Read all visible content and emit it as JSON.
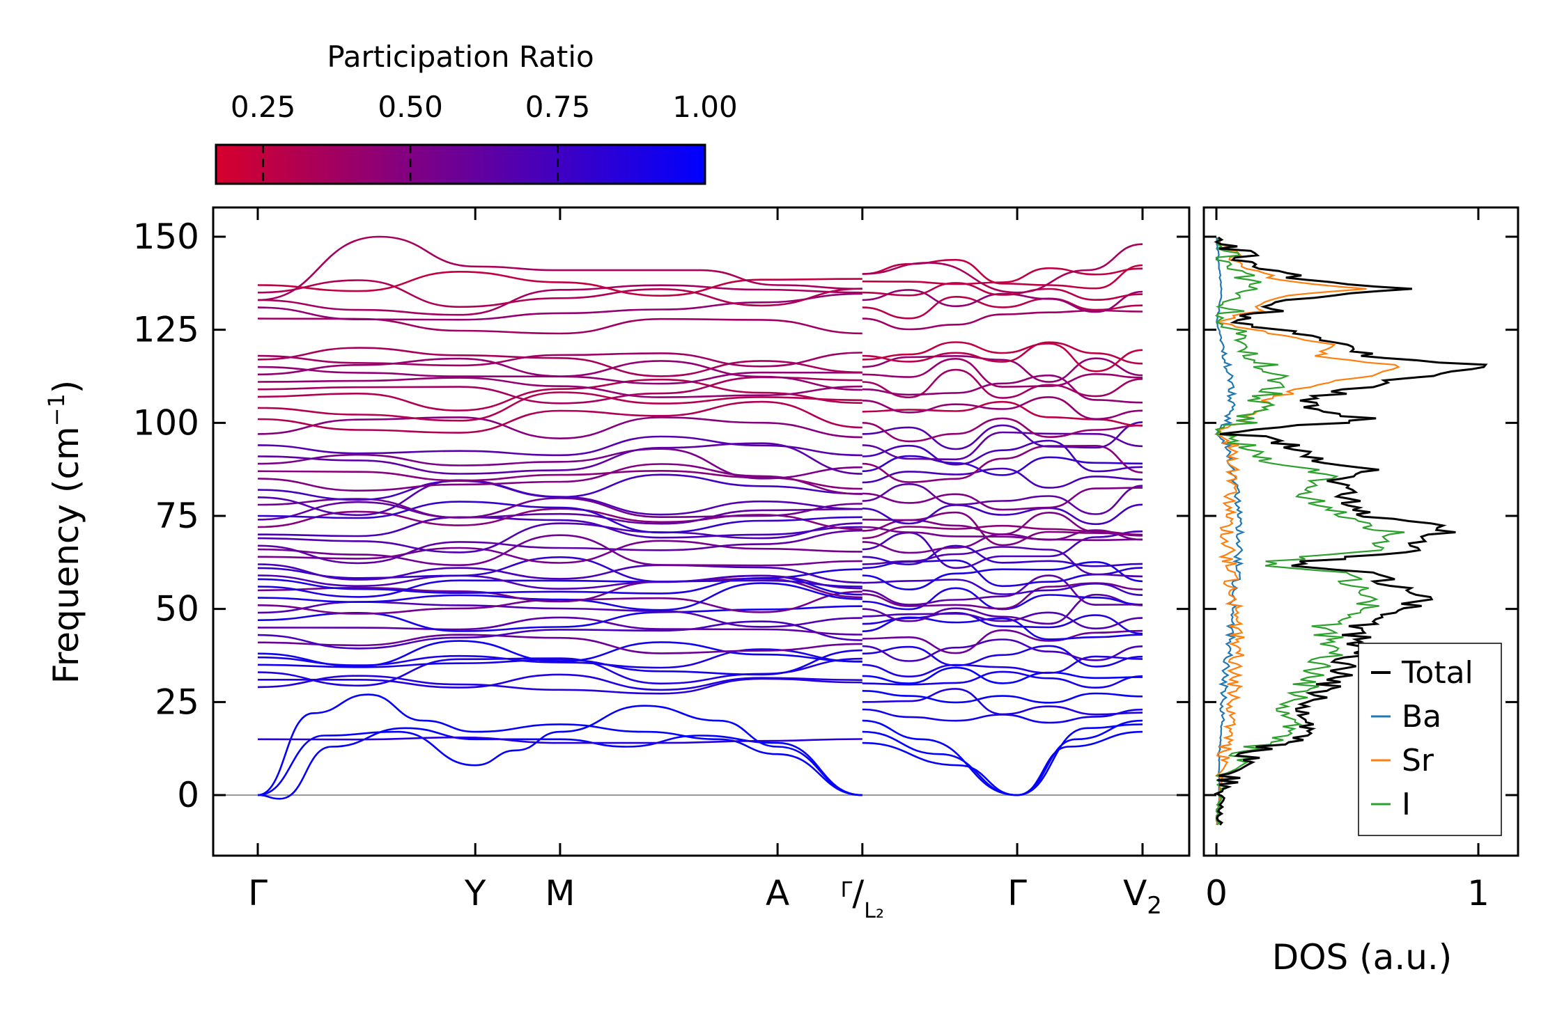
{
  "colorbar": {
    "title": "Participation Ratio",
    "ticks": [
      0.25,
      0.5,
      0.75,
      1.0
    ],
    "tick_labels": [
      "0.25",
      "0.50",
      "0.75",
      "1.00"
    ],
    "range": [
      0.17,
      1.0
    ],
    "color_low": "#d6002c",
    "color_mid": "#8b0078",
    "color_high": "#0000ff"
  },
  "chart_data": [
    {
      "type": "line",
      "name": "phonon-band-structure",
      "ylabel": "Frequency (cm",
      "ylabel_sup": "−1",
      "ylabel_close": ")",
      "ylim": [
        -16,
        150
      ],
      "xlim": [
        -0.12,
        2.25
      ],
      "yticks": [
        0,
        25,
        50,
        75,
        100,
        125,
        150
      ],
      "ytick_labels": [
        "0",
        "25",
        "50",
        "75",
        "100",
        "125",
        "150"
      ],
      "kpoints": [
        {
          "pos": 0.0,
          "label": "Γ"
        },
        {
          "pos": 0.59,
          "label": "Y"
        },
        {
          "pos": 0.82,
          "label": "M"
        },
        {
          "pos": 1.41,
          "label": "A"
        },
        {
          "pos": 1.64,
          "label": "Γ",
          "sub": "L₂",
          "sep": "/"
        },
        {
          "pos": 2.06,
          "label": "Γ"
        },
        {
          "pos": 2.4,
          "label": "V",
          "sub": "2"
        }
      ],
      "segment_ranges": [
        [
          0.0,
          1.64
        ],
        [
          1.64,
          2.4
        ]
      ],
      "zero_line": true,
      "acoustic_left": [
        [
          [
            0,
            0
          ],
          [
            0.15,
            22
          ],
          [
            0.3,
            27
          ],
          [
            0.45,
            20
          ],
          [
            0.59,
            17
          ],
          [
            0.82,
            19
          ],
          [
            1.05,
            17
          ],
          [
            1.25,
            15
          ],
          [
            1.41,
            11
          ],
          [
            1.64,
            0
          ]
        ],
        [
          [
            0,
            0
          ],
          [
            0.18,
            16
          ],
          [
            0.38,
            17
          ],
          [
            0.59,
            8
          ],
          [
            0.7,
            12
          ],
          [
            0.82,
            17
          ],
          [
            1.05,
            24
          ],
          [
            1.25,
            20
          ],
          [
            1.41,
            13
          ],
          [
            1.64,
            0
          ]
        ],
        [
          [
            0,
            0
          ],
          [
            0.06,
            -1
          ],
          [
            0.2,
            13
          ],
          [
            0.4,
            18
          ],
          [
            0.59,
            15
          ],
          [
            0.82,
            15
          ],
          [
            1.0,
            13
          ],
          [
            1.2,
            16
          ],
          [
            1.41,
            14
          ],
          [
            1.64,
            0
          ]
        ]
      ],
      "acoustic_right": [
        [
          [
            1.64,
            20
          ],
          [
            1.8,
            15
          ],
          [
            2.06,
            0
          ],
          [
            2.25,
            18
          ],
          [
            2.4,
            19
          ]
        ],
        [
          [
            1.64,
            17
          ],
          [
            1.85,
            11
          ],
          [
            2.06,
            0
          ],
          [
            2.2,
            13
          ],
          [
            2.4,
            17
          ]
        ],
        [
          [
            1.64,
            14
          ],
          [
            1.9,
            8
          ],
          [
            2.06,
            0
          ],
          [
            2.22,
            15
          ],
          [
            2.4,
            20
          ]
        ]
      ],
      "optic_left_start": [
        15,
        29,
        31,
        33,
        35,
        37,
        38,
        41,
        43,
        45,
        47,
        49,
        51,
        53,
        55,
        56,
        58,
        59,
        61,
        62,
        64,
        66,
        67,
        69,
        70,
        72,
        74,
        75,
        78,
        80,
        82,
        85,
        87,
        89,
        91,
        94,
        97,
        101,
        104,
        107,
        109,
        111,
        113,
        115,
        117,
        118,
        128,
        131,
        133,
        135,
        137
      ],
      "optic_right_start": [
        23,
        25,
        28,
        30,
        32,
        35,
        38,
        40,
        42,
        44,
        46,
        48,
        50,
        52,
        54,
        55,
        57,
        59,
        61,
        62,
        64,
        66,
        68,
        69,
        71,
        72,
        74,
        77,
        79,
        81,
        84,
        87,
        89,
        91,
        94,
        97,
        100,
        103,
        106,
        109,
        111,
        113,
        115,
        117,
        118,
        128,
        131,
        133,
        135,
        138,
        140
      ],
      "max_branch": {
        "peak": 150,
        "at": 0.33
      }
    },
    {
      "type": "line",
      "name": "density-of-states",
      "xlabel": "DOS (a.u.)",
      "xlim": [
        -0.06,
        1.12
      ],
      "xticks": [
        0,
        1
      ],
      "xtick_labels": [
        "0",
        "1"
      ],
      "ylim": [
        -16,
        150
      ],
      "series": [
        {
          "name": "Total",
          "color": "#000000"
        },
        {
          "name": "Ba",
          "color": "#1f77b4"
        },
        {
          "name": "Sr",
          "color": "#ff7f0e"
        },
        {
          "name": "I",
          "color": "#2ca02c"
        }
      ],
      "total_profile": [
        [
          -8,
          0.01
        ],
        [
          0,
          0.02
        ],
        [
          4,
          0.05
        ],
        [
          8,
          0.1
        ],
        [
          12,
          0.15
        ],
        [
          15,
          0.3
        ],
        [
          18,
          0.35
        ],
        [
          20,
          0.3
        ],
        [
          24,
          0.35
        ],
        [
          28,
          0.4
        ],
        [
          32,
          0.48
        ],
        [
          36,
          0.5
        ],
        [
          40,
          0.55
        ],
        [
          44,
          0.52
        ],
        [
          48,
          0.62
        ],
        [
          50,
          0.7
        ],
        [
          53,
          0.82
        ],
        [
          56,
          0.7
        ],
        [
          60,
          0.55
        ],
        [
          62,
          0.25
        ],
        [
          65,
          0.7
        ],
        [
          70,
          0.85
        ],
        [
          72,
          0.9
        ],
        [
          75,
          0.55
        ],
        [
          80,
          0.5
        ],
        [
          85,
          0.45
        ],
        [
          87,
          0.62
        ],
        [
          90,
          0.4
        ],
        [
          96,
          0.2
        ],
        [
          97,
          0.05
        ],
        [
          99,
          0.3
        ],
        [
          101,
          0.6
        ],
        [
          104,
          0.3
        ],
        [
          108,
          0.45
        ],
        [
          112,
          0.7
        ],
        [
          115,
          1.07
        ],
        [
          118,
          0.6
        ],
        [
          121,
          0.5
        ],
        [
          124,
          0.3
        ],
        [
          127,
          0.05
        ],
        [
          130,
          0.2
        ],
        [
          133,
          0.3
        ],
        [
          136,
          0.7
        ],
        [
          138,
          0.35
        ],
        [
          142,
          0.15
        ],
        [
          146,
          0.08
        ],
        [
          150,
          0.0
        ]
      ],
      "ba_profile": [
        [
          -8,
          0.0
        ],
        [
          0,
          0.01
        ],
        [
          10,
          0.01
        ],
        [
          20,
          0.02
        ],
        [
          30,
          0.03
        ],
        [
          40,
          0.05
        ],
        [
          50,
          0.06
        ],
        [
          60,
          0.08
        ],
        [
          70,
          0.09
        ],
        [
          80,
          0.08
        ],
        [
          88,
          0.06
        ],
        [
          94,
          0.04
        ],
        [
          97,
          0.0
        ],
        [
          100,
          0.04
        ],
        [
          106,
          0.06
        ],
        [
          112,
          0.05
        ],
        [
          120,
          0.03
        ],
        [
          127,
          0.0
        ],
        [
          134,
          0.02
        ],
        [
          142,
          0.01
        ],
        [
          150,
          0.0
        ]
      ],
      "sr_profile": [
        [
          -8,
          0.0
        ],
        [
          0,
          0.01
        ],
        [
          10,
          0.03
        ],
        [
          20,
          0.05
        ],
        [
          30,
          0.07
        ],
        [
          40,
          0.08
        ],
        [
          50,
          0.07
        ],
        [
          60,
          0.05
        ],
        [
          70,
          0.04
        ],
        [
          80,
          0.05
        ],
        [
          88,
          0.07
        ],
        [
          94,
          0.06
        ],
        [
          97,
          0.0
        ],
        [
          100,
          0.1
        ],
        [
          106,
          0.2
        ],
        [
          110,
          0.35
        ],
        [
          113,
          0.6
        ],
        [
          115,
          0.72
        ],
        [
          118,
          0.4
        ],
        [
          121,
          0.45
        ],
        [
          124,
          0.2
        ],
        [
          127,
          0.0
        ],
        [
          130,
          0.15
        ],
        [
          134,
          0.25
        ],
        [
          136,
          0.55
        ],
        [
          138,
          0.25
        ],
        [
          142,
          0.1
        ],
        [
          146,
          0.05
        ],
        [
          150,
          0.0
        ]
      ],
      "i_profile": [
        [
          -8,
          0.0
        ],
        [
          0,
          0.01
        ],
        [
          4,
          0.04
        ],
        [
          8,
          0.08
        ],
        [
          12,
          0.12
        ],
        [
          15,
          0.22
        ],
        [
          18,
          0.28
        ],
        [
          22,
          0.25
        ],
        [
          26,
          0.3
        ],
        [
          30,
          0.35
        ],
        [
          35,
          0.4
        ],
        [
          40,
          0.45
        ],
        [
          45,
          0.4
        ],
        [
          48,
          0.5
        ],
        [
          52,
          0.6
        ],
        [
          56,
          0.55
        ],
        [
          60,
          0.45
        ],
        [
          62,
          0.15
        ],
        [
          66,
          0.6
        ],
        [
          70,
          0.7
        ],
        [
          74,
          0.5
        ],
        [
          78,
          0.4
        ],
        [
          82,
          0.3
        ],
        [
          86,
          0.45
        ],
        [
          90,
          0.2
        ],
        [
          94,
          0.1
        ],
        [
          97,
          0.0
        ],
        [
          100,
          0.1
        ],
        [
          104,
          0.15
        ],
        [
          108,
          0.2
        ],
        [
          112,
          0.22
        ],
        [
          116,
          0.18
        ],
        [
          120,
          0.12
        ],
        [
          124,
          0.08
        ],
        [
          127,
          0.0
        ],
        [
          130,
          0.05
        ],
        [
          134,
          0.1
        ],
        [
          138,
          0.12
        ],
        [
          142,
          0.05
        ],
        [
          146,
          0.02
        ],
        [
          150,
          0.0
        ]
      ]
    }
  ]
}
